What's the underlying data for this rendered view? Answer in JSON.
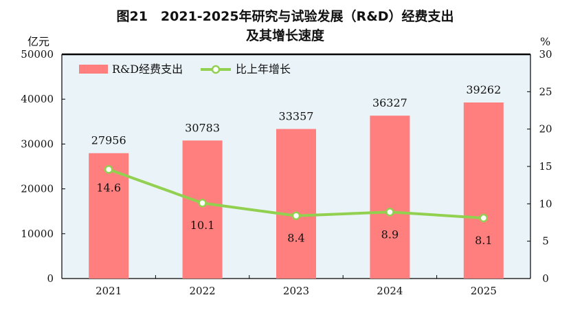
{
  "chart_data": {
    "type": "bar+line",
    "title": "图21　2021-2025年研究与试验发展（R&D）经费支出",
    "subtitle": "及其增长速度",
    "categories": [
      "2021",
      "2022",
      "2023",
      "2024",
      "2025"
    ],
    "series": [
      {
        "name": "R&D经费支出",
        "type": "bar",
        "axis": "left",
        "values": [
          27956,
          30783,
          33357,
          36327,
          39262
        ],
        "color": "#ff7f7f"
      },
      {
        "name": "比上年增长",
        "type": "line",
        "axis": "right",
        "values": [
          14.6,
          10.1,
          8.4,
          8.9,
          8.1
        ],
        "color": "#92d050"
      }
    ],
    "ylabel_left": "亿元",
    "ylim_left": [
      0,
      50000
    ],
    "yticks_left": [
      0,
      10000,
      20000,
      30000,
      40000,
      50000
    ],
    "ylabel_right": "%",
    "ylim_right": [
      0,
      30
    ],
    "yticks_right": [
      0,
      5,
      10,
      15,
      20,
      25,
      30
    ],
    "legend": "top-left",
    "grid": false,
    "plot_background": "#eaf3f7"
  }
}
